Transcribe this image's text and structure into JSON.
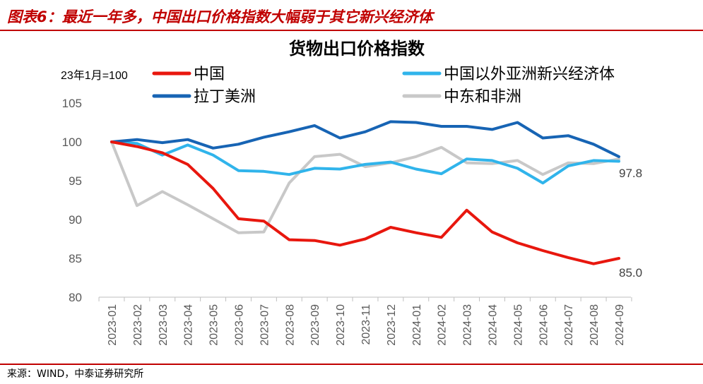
{
  "header": {
    "title": "图表6：最近一年多，中国出口价格指数大幅弱于其它新兴经济体"
  },
  "footer": {
    "source": "来源：WIND，中泰证券研究所"
  },
  "chart_data": {
    "type": "line",
    "title": "货物出口价格指数",
    "unit_note": "23年1月=100",
    "ylim": [
      80,
      105
    ],
    "yticks": [
      80,
      85,
      90,
      95,
      100,
      105
    ],
    "categories": [
      "2023-01",
      "2023-02",
      "2023-03",
      "2023-04",
      "2023-05",
      "2023-06",
      "2023-07",
      "2023-08",
      "2023-09",
      "2023-10",
      "2023-11",
      "2023-12",
      "2024-01",
      "2024-02",
      "2024-03",
      "2024-04",
      "2024-05",
      "2024-06",
      "2024-07",
      "2024-08",
      "2024-09"
    ],
    "series": [
      {
        "name": "中国",
        "color": "#e8170e",
        "values": [
          100,
          99.4,
          98.6,
          97.1,
          94.0,
          90.1,
          89.8,
          87.4,
          87.3,
          86.7,
          87.5,
          89.0,
          88.3,
          87.7,
          91.2,
          88.4,
          87.0,
          86.0,
          85.1,
          84.3,
          85.0
        ],
        "end_label": "85.0"
      },
      {
        "name": "中国以外亚洲新兴经济体",
        "color": "#30b4eb",
        "values": [
          100,
          99.8,
          98.3,
          99.6,
          98.3,
          96.3,
          96.2,
          95.8,
          96.6,
          96.5,
          97.1,
          97.4,
          96.5,
          95.9,
          97.8,
          97.6,
          96.6,
          94.7,
          96.9,
          97.6,
          97.5
        ],
        "end_label": ""
      },
      {
        "name": "拉丁美洲",
        "color": "#1764b4",
        "values": [
          100,
          100.3,
          99.9,
          100.3,
          99.2,
          99.7,
          100.6,
          101.3,
          102.1,
          100.5,
          101.3,
          102.6,
          102.5,
          102.0,
          102.0,
          101.6,
          102.5,
          100.5,
          100.8,
          99.7,
          98.1
        ],
        "end_label": ""
      },
      {
        "name": "中东和非洲",
        "color": "#c8c8c8",
        "values": [
          100,
          91.8,
          93.6,
          91.9,
          90.1,
          88.3,
          88.4,
          94.7,
          98.1,
          98.4,
          96.8,
          97.3,
          98.1,
          99.3,
          97.3,
          97.2,
          97.6,
          95.8,
          97.3,
          97.2,
          97.8
        ],
        "end_label": "97.8"
      }
    ]
  }
}
